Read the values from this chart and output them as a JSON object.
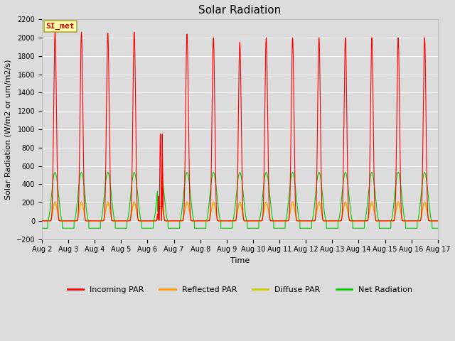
{
  "title": "Solar Radiation",
  "ylabel": "Solar Radiation (W/m2 or um/m2/s)",
  "xlabel": "Time",
  "ylim": [
    -200,
    2200
  ],
  "yticks": [
    -200,
    0,
    200,
    400,
    600,
    800,
    1000,
    1200,
    1400,
    1600,
    1800,
    2000,
    2200
  ],
  "x_labels": [
    "Aug 2",
    "Aug 3",
    "Aug 4",
    "Aug 5",
    "Aug 6",
    "Aug 7",
    "Aug 8",
    "Aug 9",
    "Aug 10",
    "Aug 11",
    "Aug 12",
    "Aug 13",
    "Aug 14",
    "Aug 15",
    "Aug 16",
    "Aug 17"
  ],
  "n_days": 15,
  "pts_per_day": 288,
  "colors": {
    "incoming": "#ff0000",
    "reflected": "#ff9900",
    "diffuse": "#cccc00",
    "net": "#00cc00"
  },
  "bg_color": "#dcdcdc",
  "fig_color": "#dcdcdc",
  "legend_label_incoming": "Incoming PAR",
  "legend_label_reflected": "Reflected PAR",
  "legend_label_diffuse": "Diffuse PAR",
  "legend_label_net": "Net Radiation",
  "annotation_text": "SI_met",
  "annotation_color": "#cc0000",
  "annotation_bg": "#ffffaa",
  "annotation_border": "#aaa840"
}
